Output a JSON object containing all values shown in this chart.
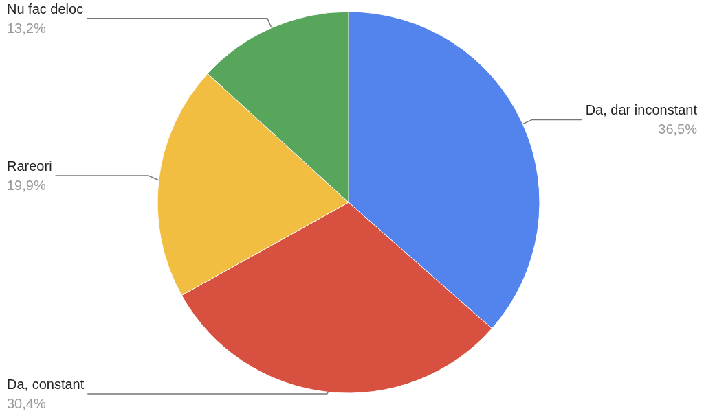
{
  "chart_data": {
    "type": "pie",
    "categories": [
      "Da, dar inconstant",
      "Da, constant",
      "Rareori",
      "Nu fac deloc"
    ],
    "values": [
      36.5,
      30.4,
      19.9,
      13.2
    ],
    "value_labels": [
      "36,5%",
      "30,4%",
      "19,9%",
      "13,2%"
    ],
    "colors": [
      "#5383ec",
      "#d85140",
      "#f1be42",
      "#58a55c"
    ],
    "legend": false
  }
}
